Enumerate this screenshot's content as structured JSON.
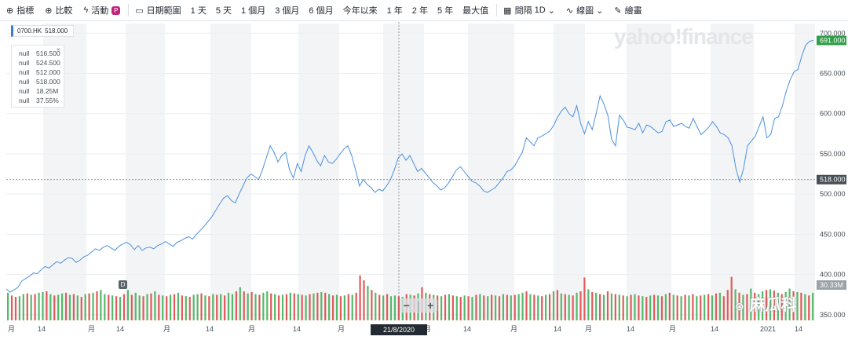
{
  "toolbar": {
    "indicators_label": "指標",
    "compare_label": "比較",
    "events_label": "活動",
    "events_badge": "P",
    "date_range_label": "日期範圍",
    "ranges": [
      "1 天",
      "5 天",
      "1 個月",
      "3 個月",
      "6 個月",
      "今年以來",
      "1 年",
      "2 年",
      "5 年",
      "最大值"
    ],
    "interval_label": "間隔",
    "interval_value": "1D",
    "chart_type_label": "線圖",
    "draw_label": "繪畫"
  },
  "ticker": {
    "symbol": "0700.HK",
    "price": "518.000"
  },
  "ohlc": {
    "rows": [
      {
        "k": "null",
        "v": "516.500"
      },
      {
        "k": "null",
        "v": "524.500"
      },
      {
        "k": "null",
        "v": "512.000"
      },
      {
        "k": "null",
        "v": "518.000"
      },
      {
        "k": "null",
        "v": "18.25M"
      },
      {
        "k": "null",
        "v": "37.55%"
      }
    ]
  },
  "logo_text": "yahoo!finance",
  "event_marker": "D",
  "watermark": "麻瓜科",
  "zoom": {
    "minus": "−",
    "plus": "+"
  },
  "chart_data": {
    "type": "line",
    "title": "",
    "xlabel": "",
    "ylabel": "",
    "ylim": [
      343,
      712
    ],
    "y_ticks": [
      "350.000",
      "400.000",
      "450.000",
      "500.000",
      "550.000",
      "600.000",
      "650.000",
      "700.000"
    ],
    "y_tick_values": [
      350,
      400,
      450,
      500,
      550,
      600,
      650,
      700
    ],
    "x_tick_labels": [
      "月",
      "14",
      "月",
      "14",
      "月",
      "14",
      "月",
      "14",
      "月",
      "14",
      "月",
      "14",
      "月",
      "14",
      "月",
      "14",
      "月",
      "14",
      "2021",
      "14"
    ],
    "crosshair_date": "21/8/2020",
    "crosshair_value": "518.000",
    "last_price_label": "691.000",
    "last_price_value": 691,
    "volume_label": "30.33M",
    "series": [
      {
        "values": [
          382,
          378,
          381,
          384,
          392,
          395,
          398,
          402,
          401,
          406,
          410,
          408,
          412,
          416,
          414,
          418,
          421,
          420,
          415,
          418,
          422,
          424,
          428,
          432,
          430,
          434,
          436,
          433,
          430,
          435,
          438,
          440,
          437,
          431,
          436,
          430,
          433,
          434,
          432,
          436,
          438,
          441,
          438,
          435,
          440,
          442,
          445,
          447,
          444,
          450,
          455,
          460,
          466,
          472,
          480,
          488,
          495,
          498,
          492,
          489,
          500,
          510,
          520,
          525,
          522,
          518,
          530,
          545,
          560,
          552,
          540,
          548,
          552,
          530,
          520,
          538,
          528,
          548,
          560,
          552,
          542,
          535,
          548,
          540,
          538,
          543,
          550,
          556,
          560,
          548,
          530,
          510,
          518,
          512,
          508,
          502,
          506,
          504,
          510,
          518,
          530,
          545,
          550,
          542,
          548,
          538,
          528,
          532,
          526,
          520,
          514,
          510,
          505,
          508,
          514,
          522,
          530,
          534,
          528,
          522,
          516,
          514,
          510,
          504,
          502,
          505,
          508,
          514,
          520,
          528,
          530,
          535,
          544,
          552,
          570,
          565,
          560,
          570,
          572,
          575,
          578,
          585,
          595,
          603,
          608,
          600,
          596,
          610,
          588,
          575,
          590,
          580,
          600,
          622,
          612,
          598,
          568,
          560,
          598,
          592,
          583,
          582,
          580,
          588,
          576,
          586,
          584,
          580,
          576,
          578,
          590,
          592,
          584,
          586,
          588,
          584,
          582,
          594,
          584,
          574,
          578,
          583,
          590,
          584,
          576,
          574,
          570,
          560,
          532,
          515,
          532,
          560,
          566,
          572,
          584,
          596,
          570,
          574,
          594,
          596,
          610,
          628,
          642,
          652,
          655,
          672,
          685,
          690,
          691
        ]
      }
    ],
    "volume_values": [
      40,
      36,
      34,
      35,
      38,
      39,
      37,
      38,
      40,
      41,
      42,
      38,
      36,
      37,
      39,
      40,
      37,
      38,
      36,
      34,
      38,
      39,
      40,
      42,
      44,
      38,
      37,
      36,
      35,
      34,
      38,
      44,
      37,
      40,
      36,
      35,
      38,
      39,
      42,
      37,
      36,
      35,
      37,
      38,
      40,
      36,
      35,
      34,
      37,
      38,
      39,
      36,
      35,
      38,
      37,
      38,
      36,
      40,
      38,
      42,
      48,
      42,
      39,
      41,
      38,
      37,
      40,
      42,
      39,
      38,
      36,
      37,
      38,
      40,
      39,
      38,
      37,
      36,
      38,
      39,
      40,
      41,
      40,
      38,
      36,
      37,
      35,
      36,
      38,
      37,
      40,
      65,
      58,
      50,
      44,
      40,
      37,
      36,
      38,
      35,
      36,
      35,
      34,
      38,
      37,
      36,
      39,
      48,
      40,
      38,
      37,
      36,
      35,
      37,
      38,
      36,
      35,
      34,
      36,
      35,
      34,
      37,
      38,
      36,
      35,
      37,
      36,
      35,
      38,
      37,
      36,
      37,
      38,
      40,
      42,
      38,
      37,
      36,
      35,
      37,
      38,
      42,
      44,
      39,
      38,
      37,
      36,
      40,
      42,
      62,
      45,
      41,
      40,
      38,
      37,
      42,
      39,
      38,
      37,
      36,
      35,
      37,
      38,
      36,
      35,
      34,
      36,
      37,
      36,
      35,
      38,
      40,
      37,
      36,
      35,
      37,
      36,
      38,
      35,
      36,
      37,
      38,
      36,
      39,
      40,
      35,
      44,
      63,
      45,
      40,
      37,
      38,
      46,
      40,
      38,
      42,
      44,
      45,
      43,
      40,
      38,
      41,
      46,
      42,
      41,
      40,
      38,
      36,
      40
    ],
    "volume_colors_up": [
      1,
      0,
      0,
      1,
      1,
      0,
      1,
      0,
      1,
      1,
      0,
      1,
      0,
      1,
      1,
      0,
      1,
      0,
      1,
      0,
      1,
      0,
      1,
      0,
      1,
      1,
      0,
      1,
      0,
      1,
      0,
      1,
      0,
      1,
      1,
      0,
      1,
      0,
      1,
      0,
      1,
      0,
      1,
      0,
      1,
      0,
      1,
      0,
      1,
      1,
      0,
      1,
      0,
      1,
      0,
      1,
      0,
      1,
      1,
      0,
      1,
      0,
      1,
      0,
      1,
      0,
      1,
      1,
      0,
      1,
      0,
      1,
      0,
      1,
      0,
      1,
      0,
      1,
      0,
      1,
      0,
      1,
      0,
      1,
      0,
      1,
      0,
      1,
      0,
      1,
      0,
      0,
      0,
      1,
      0,
      1,
      0,
      1,
      0,
      1,
      1,
      0,
      1,
      0,
      1,
      0,
      1,
      0,
      1,
      0,
      1,
      0,
      1,
      0,
      1,
      0,
      1,
      0,
      1,
      0,
      1,
      0,
      1,
      0,
      1,
      0,
      1,
      0,
      1,
      0,
      1,
      0,
      1,
      1,
      0,
      1,
      0,
      1,
      0,
      1,
      0,
      1,
      0,
      1,
      0,
      1,
      0,
      1,
      0,
      0,
      1,
      0,
      1,
      0,
      1,
      0,
      1,
      0,
      1,
      0,
      1,
      0,
      1,
      0,
      1,
      0,
      1,
      0,
      1,
      0,
      1,
      0,
      1,
      0,
      1,
      0,
      1,
      0,
      1,
      0,
      1,
      0,
      1,
      0,
      1,
      0,
      0,
      0,
      1,
      0,
      1,
      0,
      1,
      0,
      1,
      1,
      0,
      1,
      0,
      1,
      0,
      1,
      1,
      0,
      1,
      0,
      1,
      0,
      1,
      0,
      1,
      0,
      1
    ]
  },
  "colors": {
    "line": "#4a90e2",
    "up": "#56b86a",
    "down": "#e25a5a",
    "green_label": "#2e9e47",
    "band": "#f3f4f6"
  }
}
